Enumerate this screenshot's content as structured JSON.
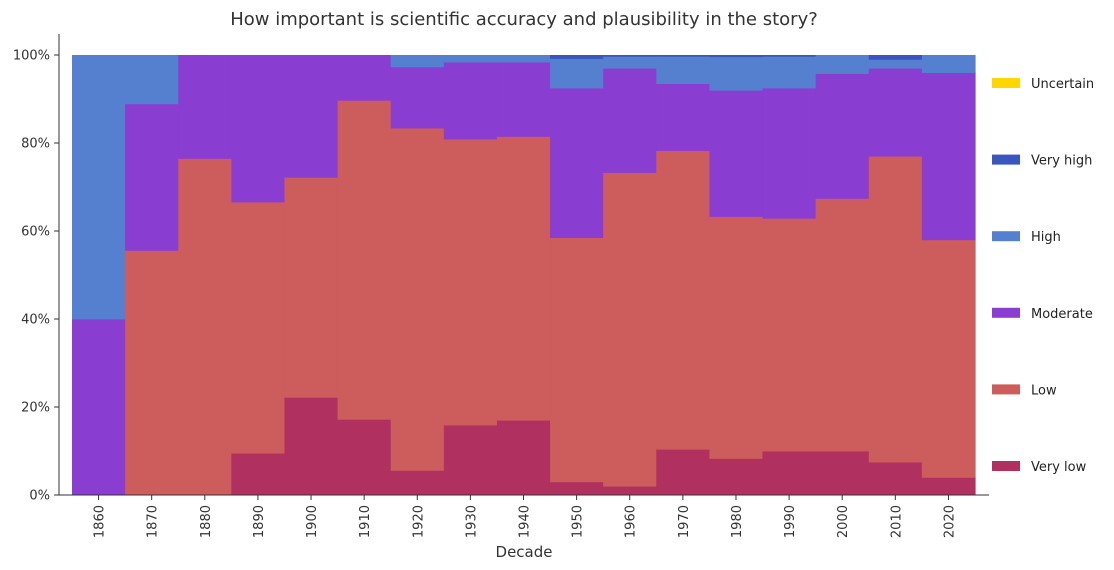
{
  "chart_data": {
    "type": "area",
    "stacked": true,
    "normalized": true,
    "title": "How important is scientific accuracy and plausibility in the story?",
    "xlabel": "Decade",
    "ylabel": "",
    "ylim": [
      0,
      1
    ],
    "yticks": [
      "0%",
      "20%",
      "40%",
      "60%",
      "80%",
      "100%"
    ],
    "categories": [
      "1860",
      "1870",
      "1880",
      "1890",
      "1900",
      "1910",
      "1920",
      "1930",
      "1940",
      "1950",
      "1960",
      "1970",
      "1980",
      "1990",
      "2000",
      "2010",
      "2020"
    ],
    "legend_position": "right",
    "grid": false,
    "series": [
      {
        "name": "Very low",
        "color": "#b03060",
        "values": [
          0,
          0,
          0,
          0.095,
          0.222,
          0.172,
          0.056,
          0.159,
          0.17,
          0.03,
          0.02,
          0.104,
          0.083,
          0.1,
          0.1,
          0.075,
          0.04
        ]
      },
      {
        "name": "Low",
        "color": "#cd5c5c",
        "values": [
          0,
          0.556,
          0.765,
          0.571,
          0.5,
          0.725,
          0.778,
          0.65,
          0.645,
          0.555,
          0.713,
          0.679,
          0.55,
          0.529,
          0.574,
          0.695,
          0.54
        ]
      },
      {
        "name": "Moderate",
        "color": "#8a3dd1",
        "values": [
          0.4,
          0.333,
          0.235,
          0.334,
          0.278,
          0.103,
          0.139,
          0.175,
          0.169,
          0.34,
          0.237,
          0.152,
          0.287,
          0.296,
          0.284,
          0.2,
          0.38
        ]
      },
      {
        "name": "High",
        "color": "#5580d0",
        "values": [
          0.6,
          0.111,
          0,
          0,
          0,
          0,
          0.027,
          0.016,
          0.016,
          0.067,
          0.027,
          0.062,
          0.076,
          0.072,
          0.042,
          0.02,
          0.04
        ]
      },
      {
        "name": "Very high",
        "color": "#3a55c0",
        "values": [
          0,
          0,
          0,
          0,
          0,
          0,
          0,
          0,
          0,
          0.008,
          0.003,
          0.003,
          0.004,
          0.003,
          0,
          0.01,
          0
        ]
      },
      {
        "name": "Uncertain",
        "color": "#ffd700",
        "values": [
          0,
          0,
          0,
          0,
          0,
          0,
          0,
          0,
          0,
          0,
          0,
          0,
          0,
          0,
          0,
          0,
          0
        ]
      }
    ]
  }
}
